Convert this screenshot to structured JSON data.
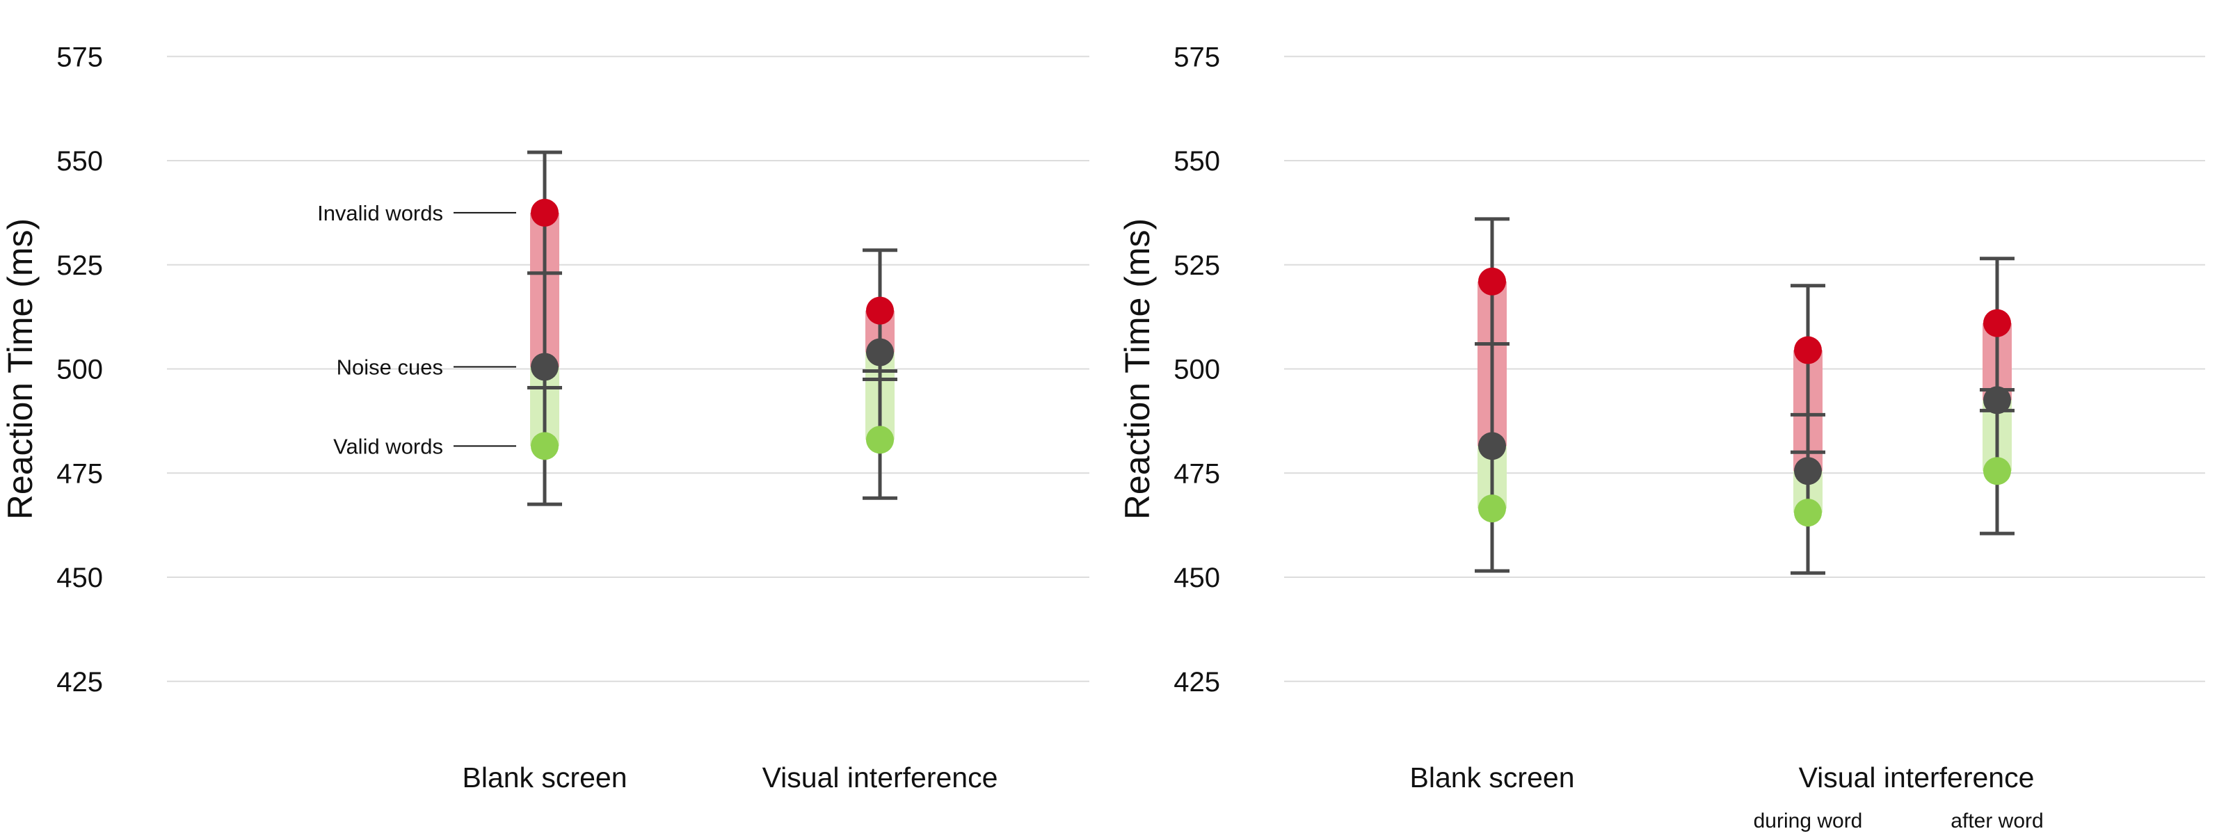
{
  "chart_data": [
    {
      "type": "scatter",
      "ylabel": "Reaction Time (ms)",
      "ylim": [
        415,
        585
      ],
      "yticks": [
        425,
        450,
        475,
        500,
        525,
        550,
        575
      ],
      "grid": true,
      "categories": [
        "Blank screen",
        "Visual interference"
      ],
      "subcategories": [
        "",
        ""
      ],
      "point_labels": [
        {
          "text": "Invalid words",
          "series": "invalid",
          "category": 0
        },
        {
          "text": "Noise cues",
          "series": "noise",
          "category": 0
        },
        {
          "text": "Valid words",
          "series": "valid",
          "category": 0
        }
      ],
      "series": [
        {
          "key": "invalid",
          "color": "#d0021b",
          "values": [
            537.5,
            514
          ]
        },
        {
          "key": "noise",
          "color": "#4a4a4a",
          "values": [
            500.5,
            504
          ],
          "ci_low": [
            467.5,
            469
          ],
          "ci_high": [
            552,
            528.5
          ]
        },
        {
          "key": "valid",
          "color": "#8fd14f",
          "values": [
            481.5,
            483
          ]
        }
      ],
      "inner_ticks": [
        [
          495.5,
          523
        ],
        [
          497.5,
          499.5
        ]
      ],
      "band_colors": {
        "upper": "#eb9aa4",
        "lower": "#d6eebb"
      }
    },
    {
      "type": "scatter",
      "ylabel": "Reaction Time (ms)",
      "ylim": [
        415,
        585
      ],
      "yticks": [
        425,
        450,
        475,
        500,
        525,
        550,
        575
      ],
      "grid": true,
      "categories": [
        "Blank screen",
        "",
        ""
      ],
      "category_group_label": "Visual interference",
      "subcategories": [
        "",
        "during word",
        "after word"
      ],
      "point_labels": [],
      "series": [
        {
          "key": "invalid",
          "color": "#d0021b",
          "values": [
            521,
            504.5,
            511
          ]
        },
        {
          "key": "noise",
          "color": "#4a4a4a",
          "values": [
            481.5,
            475.5,
            492.5
          ],
          "ci_low": [
            451.5,
            451,
            460.5
          ],
          "ci_high": [
            536,
            520,
            526.5
          ]
        },
        {
          "key": "valid",
          "color": "#8fd14f",
          "values": [
            466.5,
            465.5,
            475.5
          ]
        }
      ],
      "inner_ticks": [
        [
          506,
          506
        ],
        [
          480,
          489
        ],
        [
          490,
          495
        ]
      ],
      "band_colors": {
        "upper": "#eb9aa4",
        "lower": "#d6eebb"
      }
    }
  ]
}
